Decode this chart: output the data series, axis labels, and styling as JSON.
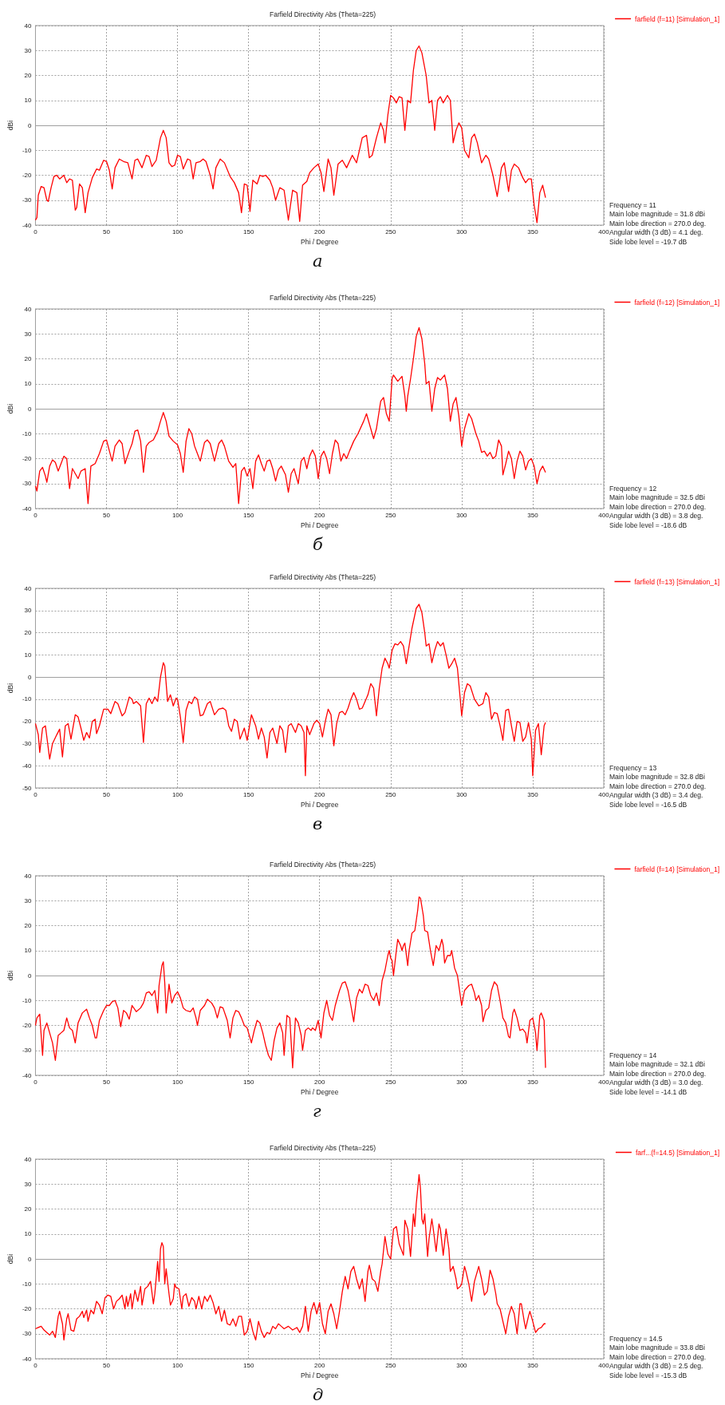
{
  "chart_data": [
    {
      "type": "line",
      "title": "Farfield Directivity Abs (Theta=225)",
      "xlabel": "Phi / Degree",
      "ylabel": "dBi",
      "xlim": [
        0,
        400
      ],
      "xticks": [
        0,
        50,
        100,
        150,
        200,
        250,
        300,
        350,
        400
      ],
      "ylim": [
        -40,
        40
      ],
      "yticks": [
        -40,
        -30,
        -20,
        -10,
        0,
        10,
        20,
        30,
        40
      ],
      "grid": true,
      "legend": "top right",
      "marker": "none",
      "series": [
        {
          "name": "farfield (f=11) [Simulation_1]",
          "color": "#ff0000",
          "x": [
            0,
            1,
            2,
            4,
            6,
            8,
            9,
            11,
            13,
            15,
            17,
            20,
            22,
            24,
            26,
            28,
            29,
            31,
            33,
            35,
            37,
            40,
            43,
            45,
            48,
            50,
            52,
            54,
            56,
            59,
            62,
            65,
            68,
            70,
            72,
            75,
            78,
            80,
            82,
            85,
            88,
            90,
            92,
            94,
            96,
            98,
            100,
            102,
            104,
            107,
            109,
            111,
            113,
            116,
            118,
            120,
            123,
            125,
            127,
            130,
            133,
            137,
            140,
            143,
            145,
            147,
            149,
            151,
            153,
            156,
            158,
            160,
            162,
            165,
            167,
            169,
            172,
            175,
            178,
            181,
            184,
            186,
            188,
            191,
            193,
            196,
            199,
            201,
            203,
            206,
            208,
            210,
            213,
            216,
            219,
            223,
            226,
            230,
            233,
            235,
            237,
            240,
            243,
            245,
            246,
            248,
            250,
            252,
            254,
            256,
            258,
            260,
            262,
            264,
            266,
            268,
            270,
            272,
            275,
            277,
            279,
            281,
            283,
            285,
            287,
            290,
            292,
            294,
            296,
            298,
            300,
            302,
            305,
            307,
            309,
            311,
            314,
            317,
            319,
            322,
            325,
            328,
            330,
            333,
            335,
            337,
            340,
            343,
            345,
            347,
            349,
            351,
            353,
            355,
            357,
            359
          ],
          "values": [
            -38,
            -37,
            -28,
            -24.5,
            -25,
            -30,
            -30.5,
            -25,
            -20.5,
            -20,
            -21.5,
            -20,
            -23,
            -21.5,
            -22,
            -34,
            -33,
            -23.5,
            -25,
            -35,
            -27,
            -21,
            -17.5,
            -18,
            -14,
            -14.5,
            -18,
            -25.5,
            -17,
            -13.5,
            -14.5,
            -15,
            -21.5,
            -14,
            -13.5,
            -17,
            -12,
            -12.5,
            -16.5,
            -14,
            -5,
            -2,
            -5,
            -15,
            -16.5,
            -16,
            -12,
            -12.5,
            -17.5,
            -13.5,
            -14,
            -21.5,
            -15,
            -14.5,
            -13.5,
            -14.5,
            -20,
            -25.5,
            -17,
            -13.5,
            -15,
            -20.5,
            -23,
            -27,
            -35,
            -23.5,
            -24,
            -34.5,
            -22,
            -23.5,
            -20,
            -20.5,
            -20,
            -22,
            -25,
            -30,
            -25,
            -26,
            -38,
            -26,
            -27,
            -38.5,
            -24,
            -22.5,
            -19,
            -17,
            -15.5,
            -19,
            -26.5,
            -13.5,
            -17,
            -28,
            -15.5,
            -14,
            -17,
            -12,
            -15,
            -5,
            -4,
            -13,
            -12,
            -5,
            1,
            -2,
            -7,
            4,
            12,
            11,
            9,
            11.5,
            11,
            -2,
            10,
            9,
            22,
            30,
            31.8,
            29,
            20,
            9,
            10,
            -2,
            10,
            11.5,
            9,
            12,
            10,
            -7,
            -2,
            1,
            -1,
            -10,
            -13,
            -5,
            -3.5,
            -7,
            -15,
            -12,
            -13.5,
            -20,
            -28.5,
            -17,
            -15,
            -26.5,
            -18,
            -15.5,
            -17,
            -21,
            -23,
            -21.5,
            -21.5,
            -32,
            -39,
            -27,
            -24,
            -29
          ]
        }
      ],
      "annotations": [
        "Frequency = 11",
        "Main lobe magnitude = 31.8 dBi",
        "Main lobe direction = 270.0 deg.",
        "Angular width (3 dB) = 4.1 deg.",
        "Side lobe level = -19.7 dB",
        "а"
      ]
    },
    {
      "type": "line",
      "title": "Farfield Directivity Abs (Theta=225)",
      "xlabel": "Phi / Degree",
      "ylabel": "dBi",
      "xlim": [
        0,
        400
      ],
      "xticks": [
        0,
        50,
        100,
        150,
        200,
        250,
        300,
        350,
        400
      ],
      "ylim": [
        -40,
        40
      ],
      "yticks": [
        -40,
        -30,
        -20,
        -10,
        0,
        10,
        20,
        30,
        40
      ],
      "grid": true,
      "legend": "top right",
      "marker": "none",
      "series": [
        {
          "name": "farfield (f=12) [Simulation_1]",
          "color": "#ff0000",
          "x": [
            0,
            1,
            3,
            5,
            7,
            8,
            10,
            12,
            14,
            16,
            18,
            20,
            22,
            24,
            26,
            28,
            30,
            32,
            35,
            37,
            39,
            42,
            45,
            48,
            50,
            53,
            54,
            56,
            59,
            61,
            63,
            66,
            68,
            70,
            72,
            74,
            76,
            78,
            80,
            83,
            86,
            88,
            90,
            92,
            94,
            97,
            100,
            102,
            104,
            106,
            108,
            110,
            112,
            114,
            116,
            119,
            121,
            123,
            126,
            129,
            131,
            133,
            136,
            139,
            141,
            143,
            145,
            147,
            149,
            151,
            153,
            155,
            157,
            159,
            161,
            163,
            165,
            167,
            169,
            171,
            173,
            176,
            178,
            180,
            182,
            185,
            187,
            189,
            191,
            193,
            195,
            197,
            199,
            201,
            203,
            205,
            207,
            209,
            211,
            213,
            215,
            217,
            219,
            221,
            224,
            227,
            231,
            233,
            236,
            238,
            240,
            243,
            245,
            247,
            249,
            251,
            252,
            255,
            258,
            260,
            261,
            262,
            264,
            266,
            268,
            270,
            272,
            274,
            275,
            277,
            279,
            281,
            283,
            285,
            288,
            290,
            292,
            294,
            296,
            298,
            300,
            302,
            305,
            307,
            310,
            312,
            314,
            316,
            318,
            320,
            322,
            324,
            326,
            328,
            329,
            331,
            333,
            335,
            337,
            339,
            341,
            343,
            345,
            347,
            349,
            351,
            353,
            355,
            357,
            359
          ],
          "values": [
            -31,
            -33,
            -25,
            -23.5,
            -27,
            -29.5,
            -23,
            -20.5,
            -21.5,
            -25,
            -22,
            -19,
            -20,
            -32,
            -24,
            -26,
            -28,
            -25,
            -24,
            -38,
            -23,
            -22,
            -18,
            -13,
            -12.5,
            -19,
            -21,
            -15,
            -12.5,
            -14,
            -22,
            -17,
            -14,
            -9,
            -8.5,
            -13,
            -25.5,
            -15,
            -13.5,
            -12.5,
            -9,
            -5,
            -1.5,
            -5,
            -11,
            -13,
            -14.5,
            -18,
            -25.5,
            -13,
            -8,
            -10,
            -15,
            -18,
            -21,
            -13.5,
            -12.5,
            -14,
            -21,
            -14,
            -12.5,
            -15,
            -21,
            -23.5,
            -22,
            -38,
            -25,
            -23.5,
            -27,
            -24,
            -32,
            -21,
            -18.5,
            -22,
            -25,
            -21,
            -20.5,
            -24,
            -29,
            -24.5,
            -23,
            -26.5,
            -33.5,
            -26,
            -24,
            -30,
            -21,
            -19.5,
            -24,
            -19,
            -16.5,
            -19,
            -28,
            -19,
            -17,
            -20,
            -26,
            -18,
            -12.5,
            -14,
            -21,
            -18,
            -20,
            -17,
            -13,
            -10,
            -5,
            -2,
            -8,
            -12,
            -8,
            3,
            4.5,
            -2,
            -5,
            12,
            13.5,
            11,
            13,
            5,
            -1,
            5,
            12,
            20,
            29,
            32.5,
            28,
            18,
            10,
            11,
            -1,
            8,
            12.5,
            11.5,
            13.5,
            8,
            -5,
            2,
            4.5,
            -3,
            -15,
            -8,
            -2,
            -4,
            -10,
            -13,
            -17.5,
            -17,
            -19,
            -17.5,
            -20,
            -19,
            -12.5,
            -15,
            -26.5,
            -22,
            -17,
            -20,
            -28,
            -21,
            -17,
            -19,
            -24.5,
            -21,
            -20,
            -23,
            -30,
            -25,
            -23,
            -25.5
          ]
        }
      ],
      "annotations": [
        "Frequency = 12",
        "Main lobe magnitude = 32.5 dBi",
        "Main lobe direction = 270.0 deg.",
        "Angular width (3 dB) = 3.8 deg.",
        "Side lobe level = -18.6 dB",
        "б"
      ]
    },
    {
      "type": "line",
      "title": "Farfield Directivity Abs (Theta=225)",
      "xlabel": "Phi / Degree",
      "ylabel": "dBi",
      "xlim": [
        0,
        400
      ],
      "xticks": [
        0,
        50,
        100,
        150,
        200,
        250,
        300,
        350,
        400
      ],
      "ylim": [
        -50,
        40
      ],
      "yticks": [
        -50,
        -40,
        -30,
        -20,
        -10,
        0,
        10,
        20,
        30,
        40
      ],
      "grid": true,
      "legend": "top right",
      "marker": "none",
      "series": [
        {
          "name": "farfield (f=13) [Simulation_1]",
          "color": "#ff0000",
          "x": [
            0,
            2,
            3,
            5,
            7,
            10,
            12,
            15,
            17,
            19,
            21,
            23,
            25,
            28,
            30,
            32,
            34,
            36,
            38,
            40,
            42,
            43,
            45,
            48,
            51,
            53,
            56,
            58,
            61,
            63,
            66,
            68,
            69,
            71,
            74,
            76,
            78,
            80,
            82,
            84,
            86,
            88,
            90,
            91,
            93,
            95,
            97,
            99,
            100,
            102,
            104,
            106,
            108,
            110,
            112,
            114,
            116,
            118,
            121,
            123,
            126,
            129,
            132,
            134,
            136,
            138,
            140,
            142,
            144,
            147,
            149,
            152,
            155,
            157,
            159,
            161,
            163,
            165,
            167,
            170,
            172,
            174,
            176,
            178,
            180,
            183,
            185,
            187,
            189,
            190,
            191,
            193,
            196,
            198,
            200,
            202,
            204,
            206,
            208,
            210,
            212,
            214,
            216,
            218,
            220,
            222,
            224,
            226,
            228,
            230,
            232,
            234,
            236,
            238,
            240,
            242,
            244,
            246,
            248,
            249,
            251,
            253,
            255,
            257,
            259,
            261,
            263,
            265,
            268,
            270,
            272,
            274,
            275,
            277,
            279,
            281,
            283,
            285,
            287,
            289,
            291,
            293,
            295,
            297,
            299,
            300,
            302,
            304,
            306,
            309,
            312,
            315,
            317,
            319,
            321,
            323,
            325,
            327,
            329,
            331,
            333,
            335,
            337,
            339,
            341,
            343,
            345,
            347,
            349,
            350,
            352,
            354,
            356,
            358,
            359
          ],
          "values": [
            -21,
            -26,
            -34,
            -23,
            -22,
            -37,
            -30,
            -26,
            -23.5,
            -36,
            -22,
            -21,
            -28,
            -17,
            -18,
            -23,
            -28.5,
            -25,
            -27.5,
            -20,
            -19,
            -25.5,
            -22,
            -14.5,
            -14.5,
            -16.5,
            -11,
            -12,
            -17.5,
            -16,
            -9,
            -10,
            -12,
            -11,
            -13,
            -29.5,
            -12,
            -9.5,
            -12,
            -9,
            -11,
            0,
            6.5,
            5,
            -11,
            -8,
            -13,
            -9.5,
            -10,
            -18,
            -29.5,
            -15,
            -11,
            -12,
            -9,
            -10,
            -17.5,
            -17,
            -12,
            -11,
            -17,
            -14.5,
            -14,
            -15,
            -22,
            -24.5,
            -19,
            -20,
            -28,
            -23,
            -28.5,
            -17,
            -22,
            -28,
            -23,
            -27,
            -36.5,
            -25,
            -23,
            -30,
            -22,
            -24,
            -34,
            -22,
            -21,
            -25,
            -21,
            -22,
            -25,
            -44.5,
            -22,
            -26,
            -21,
            -19.5,
            -21,
            -27,
            -20,
            -14.5,
            -17,
            -31,
            -21,
            -16,
            -15.5,
            -17,
            -14,
            -10,
            -7,
            -10,
            -14.5,
            -14,
            -11,
            -8,
            -3,
            -5,
            -17.5,
            -5,
            4,
            8.5,
            6,
            4,
            12,
            15,
            14.5,
            16,
            14,
            6,
            14,
            22,
            31,
            32.8,
            29,
            20,
            14,
            15,
            6.5,
            12,
            16,
            14,
            15.5,
            10,
            4,
            6,
            8.5,
            4,
            -10,
            -17.5,
            -7,
            -3,
            -4,
            -10,
            -13,
            -12,
            -7,
            -9,
            -19,
            -16,
            -16.5,
            -22,
            -28.5,
            -15,
            -14.5,
            -22,
            -29,
            -20,
            -20.5,
            -29,
            -27,
            -20.5,
            -28,
            -44.5,
            -24,
            -21,
            -35,
            -22,
            -20.5
          ]
        }
      ],
      "annotations": [
        "Frequency = 13",
        "Main lobe magnitude = 32.8 dBi",
        "Main lobe direction = 270.0 deg.",
        "Angular width (3 dB) = 3.4 deg.",
        "Side lobe level = -16.5 dB",
        "в"
      ]
    },
    {
      "type": "line",
      "title": "Farfield Directivity Abs (Theta=225)",
      "xlabel": "Phi / Degree",
      "ylabel": "dBi",
      "xlim": [
        0,
        400
      ],
      "xticks": [
        0,
        50,
        100,
        150,
        200,
        250,
        300,
        350,
        400
      ],
      "ylim": [
        -40,
        40
      ],
      "yticks": [
        -40,
        -30,
        -20,
        -10,
        0,
        10,
        20,
        30,
        40
      ],
      "grid": true,
      "legend": "top right",
      "marker": "none",
      "series": [
        {
          "name": "farfield (f=14) [Simulation_1]",
          "color": "#ff0000",
          "x": [
            0,
            1,
            3,
            5,
            6,
            8,
            10,
            12,
            14,
            16,
            18,
            20,
            22,
            24,
            26,
            28,
            30,
            33,
            36,
            38,
            40,
            42,
            43,
            45,
            48,
            50,
            52,
            54,
            56,
            58,
            60,
            62,
            64,
            66,
            68,
            71,
            74,
            76,
            78,
            80,
            82,
            84,
            86,
            87,
            89,
            90,
            91,
            92,
            94,
            96,
            98,
            100,
            102,
            104,
            106,
            109,
            111,
            113,
            114,
            116,
            119,
            121,
            124,
            126,
            128,
            130,
            132,
            135,
            137,
            139,
            141,
            143,
            145,
            147,
            149,
            150,
            152,
            154,
            156,
            158,
            160,
            162,
            164,
            166,
            168,
            170,
            172,
            174,
            175,
            177,
            179,
            181,
            183,
            185,
            187,
            188,
            190,
            192,
            194,
            195,
            197,
            199,
            201,
            203,
            205,
            207,
            209,
            211,
            214,
            216,
            218,
            220,
            222,
            224,
            226,
            228,
            230,
            232,
            234,
            236,
            238,
            240,
            242,
            244,
            246,
            248,
            249,
            250,
            251,
            252,
            254,
            255,
            257,
            258,
            259,
            260,
            262,
            263,
            265,
            267,
            269,
            270,
            271,
            273,
            274,
            276,
            278,
            280,
            282,
            284,
            286,
            287,
            288,
            290,
            292,
            293,
            295,
            297,
            298,
            300,
            302,
            305,
            307,
            309,
            310,
            312,
            314,
            315,
            317,
            319,
            321,
            323,
            325,
            327,
            329,
            331,
            333,
            334,
            336,
            337,
            339,
            341,
            343,
            345,
            346,
            348,
            350,
            352,
            353,
            355,
            356,
            358,
            359
          ],
          "values": [
            -20,
            -17,
            -15.5,
            -32,
            -22,
            -19,
            -23,
            -27,
            -34,
            -24,
            -23,
            -22,
            -17,
            -21,
            -22,
            -27,
            -19,
            -15,
            -13.5,
            -17,
            -20,
            -25,
            -25,
            -18,
            -14,
            -12,
            -12,
            -10.5,
            -10,
            -13,
            -20.5,
            -14,
            -15,
            -17.5,
            -12,
            -14.5,
            -13,
            -11,
            -7,
            -6.5,
            -8,
            -6,
            -15,
            -4,
            4,
            5.5,
            -3,
            -15,
            -3.5,
            -11,
            -8,
            -6.5,
            -9,
            -13,
            -14,
            -14.5,
            -13,
            -17,
            -20,
            -14,
            -12,
            -9.5,
            -11,
            -13,
            -17,
            -12.5,
            -13,
            -18,
            -25,
            -17,
            -14,
            -14.5,
            -17,
            -20,
            -21,
            -23,
            -27,
            -22,
            -18,
            -19,
            -23,
            -28,
            -32,
            -34,
            -26,
            -21,
            -19,
            -23,
            -32,
            -16,
            -17,
            -37,
            -17,
            -19,
            -24,
            -30,
            -22,
            -21,
            -22,
            -21,
            -22,
            -18,
            -25,
            -15,
            -10,
            -16,
            -18,
            -12,
            -6,
            -3,
            -2.5,
            -6,
            -12,
            -18.5,
            -9,
            -5.5,
            -7,
            -3.5,
            -4,
            -8,
            -10,
            -7,
            -12,
            -2,
            2,
            8,
            10,
            7,
            6,
            0,
            10,
            14.5,
            12,
            10,
            12,
            13,
            4,
            10,
            17,
            18,
            26,
            31.5,
            31,
            24,
            18,
            17.5,
            10,
            4,
            12,
            10,
            14.5,
            12,
            5,
            8,
            8,
            10,
            3,
            0,
            -4,
            -12,
            -6,
            -4,
            -3.5,
            -7,
            -10,
            -8,
            -12,
            -18.5,
            -14,
            -13,
            -6,
            -2.5,
            -4,
            -10,
            -17,
            -19,
            -24.5,
            -25,
            -15,
            -13.5,
            -17,
            -22,
            -21.5,
            -23,
            -27,
            -18,
            -17,
            -23,
            -30,
            -16,
            -15,
            -18,
            -37
          ]
        }
      ],
      "annotations": [
        "Frequency = 14",
        "Main lobe magnitude = 32.1 dBi",
        "Main lobe direction = 270.0 deg.",
        "Angular width (3 dB) = 3.0 deg.",
        "Side lobe level = -14.1 dB",
        "г"
      ]
    },
    {
      "type": "line",
      "title": "Farfield Directivity Abs (Theta=225)",
      "xlabel": "Phi / Degree",
      "ylabel": "dBi",
      "xlim": [
        0,
        400
      ],
      "xticks": [
        0,
        50,
        100,
        150,
        200,
        250,
        300,
        350,
        400
      ],
      "ylim": [
        -40,
        40
      ],
      "yticks": [
        -40,
        -30,
        -20,
        -10,
        0,
        10,
        20,
        30,
        40
      ],
      "grid": true,
      "legend": "top right",
      "marker": "none",
      "series": [
        {
          "name": "farf...(f=14.5) [Simulation_1]",
          "color": "#ff0000",
          "x": [
            0,
            2,
            4,
            6,
            8,
            10,
            12,
            14,
            16,
            17,
            19,
            20,
            22,
            23,
            25,
            27,
            29,
            31,
            33,
            34,
            36,
            37,
            39,
            41,
            43,
            45,
            47,
            49,
            51,
            53,
            55,
            57,
            59,
            61,
            63,
            64,
            65,
            67,
            68,
            70,
            72,
            74,
            75,
            77,
            79,
            81,
            83,
            84,
            86,
            87,
            88,
            89,
            90,
            91,
            92,
            94,
            95,
            97,
            98,
            99,
            101,
            103,
            104,
            106,
            108,
            110,
            112,
            113,
            115,
            117,
            119,
            121,
            123,
            125,
            127,
            129,
            131,
            133,
            135,
            137,
            139,
            141,
            143,
            145,
            147,
            149,
            151,
            153,
            155,
            157,
            159,
            161,
            163,
            165,
            167,
            169,
            171,
            173,
            175,
            178,
            181,
            184,
            186,
            188,
            190,
            192,
            194,
            196,
            198,
            200,
            202,
            204,
            206,
            208,
            210,
            212,
            214,
            216,
            218,
            220,
            222,
            224,
            226,
            228,
            230,
            232,
            234,
            235,
            237,
            239,
            241,
            243,
            244,
            246,
            248,
            250,
            252,
            254,
            256,
            258,
            259,
            260,
            262,
            264,
            266,
            267,
            268,
            270,
            271,
            272,
            273,
            274,
            276,
            277,
            279,
            280,
            282,
            284,
            285,
            287,
            289,
            291,
            292,
            294,
            296,
            297,
            299,
            300,
            302,
            303,
            305,
            307,
            309,
            311,
            312,
            314,
            316,
            318,
            320,
            322,
            324,
            325,
            327,
            329,
            331,
            333,
            335,
            337,
            339,
            341,
            342,
            344,
            345,
            347,
            348,
            350,
            352,
            354,
            356,
            358,
            359
          ],
          "values": [
            -28,
            -27.5,
            -27,
            -28.5,
            -29.5,
            -30.5,
            -29,
            -31.5,
            -23,
            -21,
            -26,
            -32.5,
            -24,
            -22,
            -28.5,
            -29,
            -24,
            -23,
            -21,
            -23.5,
            -20.5,
            -25,
            -20.5,
            -22,
            -17,
            -18.5,
            -22,
            -15.5,
            -14.5,
            -15,
            -20,
            -17,
            -16,
            -14.5,
            -20,
            -15,
            -19,
            -14,
            -20,
            -12.5,
            -17,
            -11,
            -18.5,
            -12,
            -11,
            -9,
            -18,
            -14,
            -1,
            -9,
            4,
            6.5,
            5,
            -10,
            -4,
            -14,
            -18.5,
            -16,
            -10,
            -11.5,
            -12,
            -20,
            -15,
            -14,
            -19,
            -15.5,
            -17,
            -20,
            -15,
            -20,
            -15,
            -17,
            -14.5,
            -17.5,
            -22,
            -19,
            -25,
            -20.5,
            -26,
            -26.5,
            -24,
            -27,
            -23,
            -23,
            -30.5,
            -29,
            -24,
            -29,
            -32.5,
            -25,
            -29,
            -31.5,
            -29.5,
            -30,
            -27,
            -28,
            -26,
            -27,
            -28,
            -27,
            -28.5,
            -27.5,
            -29.5,
            -27,
            -19,
            -29,
            -21,
            -17.5,
            -22,
            -17.5,
            -26,
            -30,
            -21,
            -18,
            -22,
            -28,
            -21,
            -13,
            -7,
            -12,
            -5,
            -3,
            -8,
            -12,
            -8,
            -17,
            -5,
            -2.5,
            -8,
            -9,
            -13,
            -5,
            -2,
            9,
            2,
            0,
            12,
            13,
            6,
            3,
            1.5,
            15.5,
            12,
            1,
            18,
            13,
            22,
            33.8,
            28,
            16,
            14,
            18,
            1,
            8,
            16,
            12,
            3,
            14,
            12,
            1.5,
            12,
            4,
            -5,
            -3,
            -8,
            -12,
            -11,
            -10,
            -3,
            -5,
            -10,
            -17,
            -9,
            -5,
            -3,
            -8,
            -14.5,
            -13,
            -4.5,
            -8,
            -14,
            -18,
            -20,
            -25,
            -30,
            -23,
            -19,
            -22,
            -30,
            -18,
            -18,
            -25,
            -28,
            -23,
            -21,
            -25,
            -29.5,
            -28,
            -27.5,
            -26,
            -26
          ]
        }
      ],
      "annotations": [
        "Frequency = 14.5",
        "Main lobe magnitude = 33.8 dBi",
        "Main lobe direction = 270.0 deg.",
        "Angular width (3 dB) = 2.5 deg.",
        "Side lobe level = -15.3 dB",
        "д"
      ]
    }
  ]
}
